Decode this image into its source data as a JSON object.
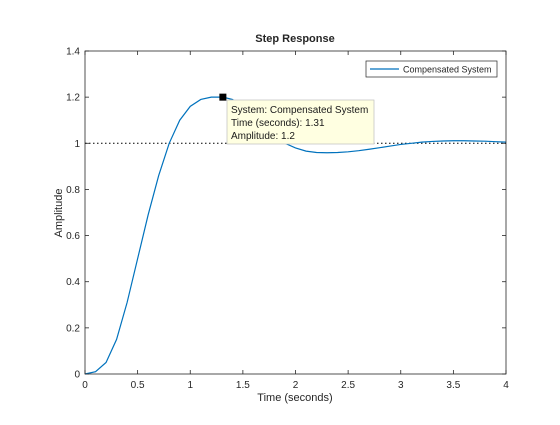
{
  "chart_data": {
    "type": "line",
    "title": "Step Response",
    "xlabel": "Time (seconds)",
    "ylabel": "Amplitude",
    "xlim": [
      0,
      4
    ],
    "ylim": [
      0,
      1.4
    ],
    "xticks": [
      0,
      0.5,
      1,
      1.5,
      2,
      2.5,
      3,
      3.5,
      4
    ],
    "xtick_labels": [
      "0",
      "0.5",
      "1",
      "1.5",
      "2",
      "2.5",
      "3",
      "3.5",
      "4"
    ],
    "yticks": [
      0,
      0.2,
      0.4,
      0.6,
      0.8,
      1,
      1.2,
      1.4
    ],
    "ytick_labels": [
      "0",
      "0.2",
      "0.4",
      "0.6",
      "0.8",
      "1",
      "1.2",
      "1.4"
    ],
    "grid": false,
    "legend_location": "top-right",
    "reference_line": {
      "y": 1,
      "style": "dotted",
      "color": "#000000"
    },
    "series": [
      {
        "name": "Compensated System",
        "color": "#0072BD",
        "x": [
          0,
          0.1,
          0.2,
          0.3,
          0.4,
          0.5,
          0.6,
          0.7,
          0.8,
          0.9,
          1.0,
          1.1,
          1.2,
          1.31,
          1.4,
          1.5,
          1.6,
          1.7,
          1.8,
          1.9,
          2.0,
          2.1,
          2.2,
          2.3,
          2.4,
          2.5,
          2.6,
          2.7,
          2.8,
          2.9,
          3.0,
          3.1,
          3.2,
          3.3,
          3.4,
          3.5,
          3.6,
          3.7,
          3.8,
          3.9,
          4.0
        ],
        "y": [
          0,
          0.01,
          0.05,
          0.15,
          0.31,
          0.5,
          0.69,
          0.86,
          1.0,
          1.1,
          1.16,
          1.19,
          1.2,
          1.2,
          1.19,
          1.16,
          1.12,
          1.08,
          1.04,
          1.0,
          0.98,
          0.966,
          0.96,
          0.959,
          0.96,
          0.963,
          0.968,
          0.974,
          0.981,
          0.988,
          0.995,
          1.0,
          1.005,
          1.008,
          1.01,
          1.011,
          1.011,
          1.01,
          1.009,
          1.007,
          1.005
        ]
      }
    ],
    "datatip": {
      "x": 1.31,
      "y": 1.2,
      "line1": "System: Compensated System",
      "line2": "Time (seconds): 1.31",
      "line3": "Amplitude: 1.2"
    }
  }
}
